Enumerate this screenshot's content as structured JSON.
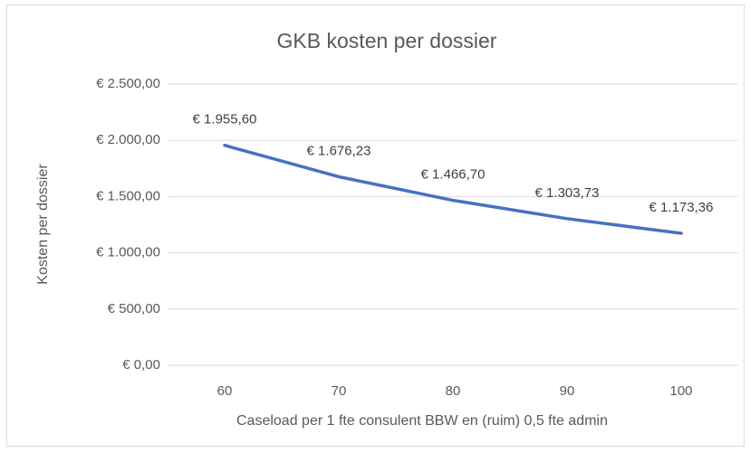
{
  "chart_data": {
    "type": "line",
    "title": "GKB kosten per dossier",
    "x_label": "Caseload per 1 fte consulent BBW en (ruim) 0,5 fte admin",
    "y_label": "Kosten per dossier",
    "categories": [
      "60",
      "70",
      "80",
      "90",
      "100"
    ],
    "series": [
      {
        "name": "Kosten per dossier",
        "color": "#4472c4",
        "values": [
          1955.6,
          1676.23,
          1466.7,
          1303.73,
          1173.36
        ],
        "value_labels": [
          "€ 1.955,60",
          "€ 1.676,23",
          "€ 1.466,70",
          "€ 1.303,73",
          "€ 1.173,36"
        ]
      }
    ],
    "ylim": [
      0,
      2500
    ],
    "yticks": [
      {
        "value": 0,
        "label": "€ 0,00"
      },
      {
        "value": 500,
        "label": "€ 500,00"
      },
      {
        "value": 1000,
        "label": "€ 1.000,00"
      },
      {
        "value": 1500,
        "label": "€ 1.500,00"
      },
      {
        "value": 2000,
        "label": "€ 2.000,00"
      },
      {
        "value": 2500,
        "label": "€ 2.500,00"
      }
    ],
    "grid": true
  }
}
